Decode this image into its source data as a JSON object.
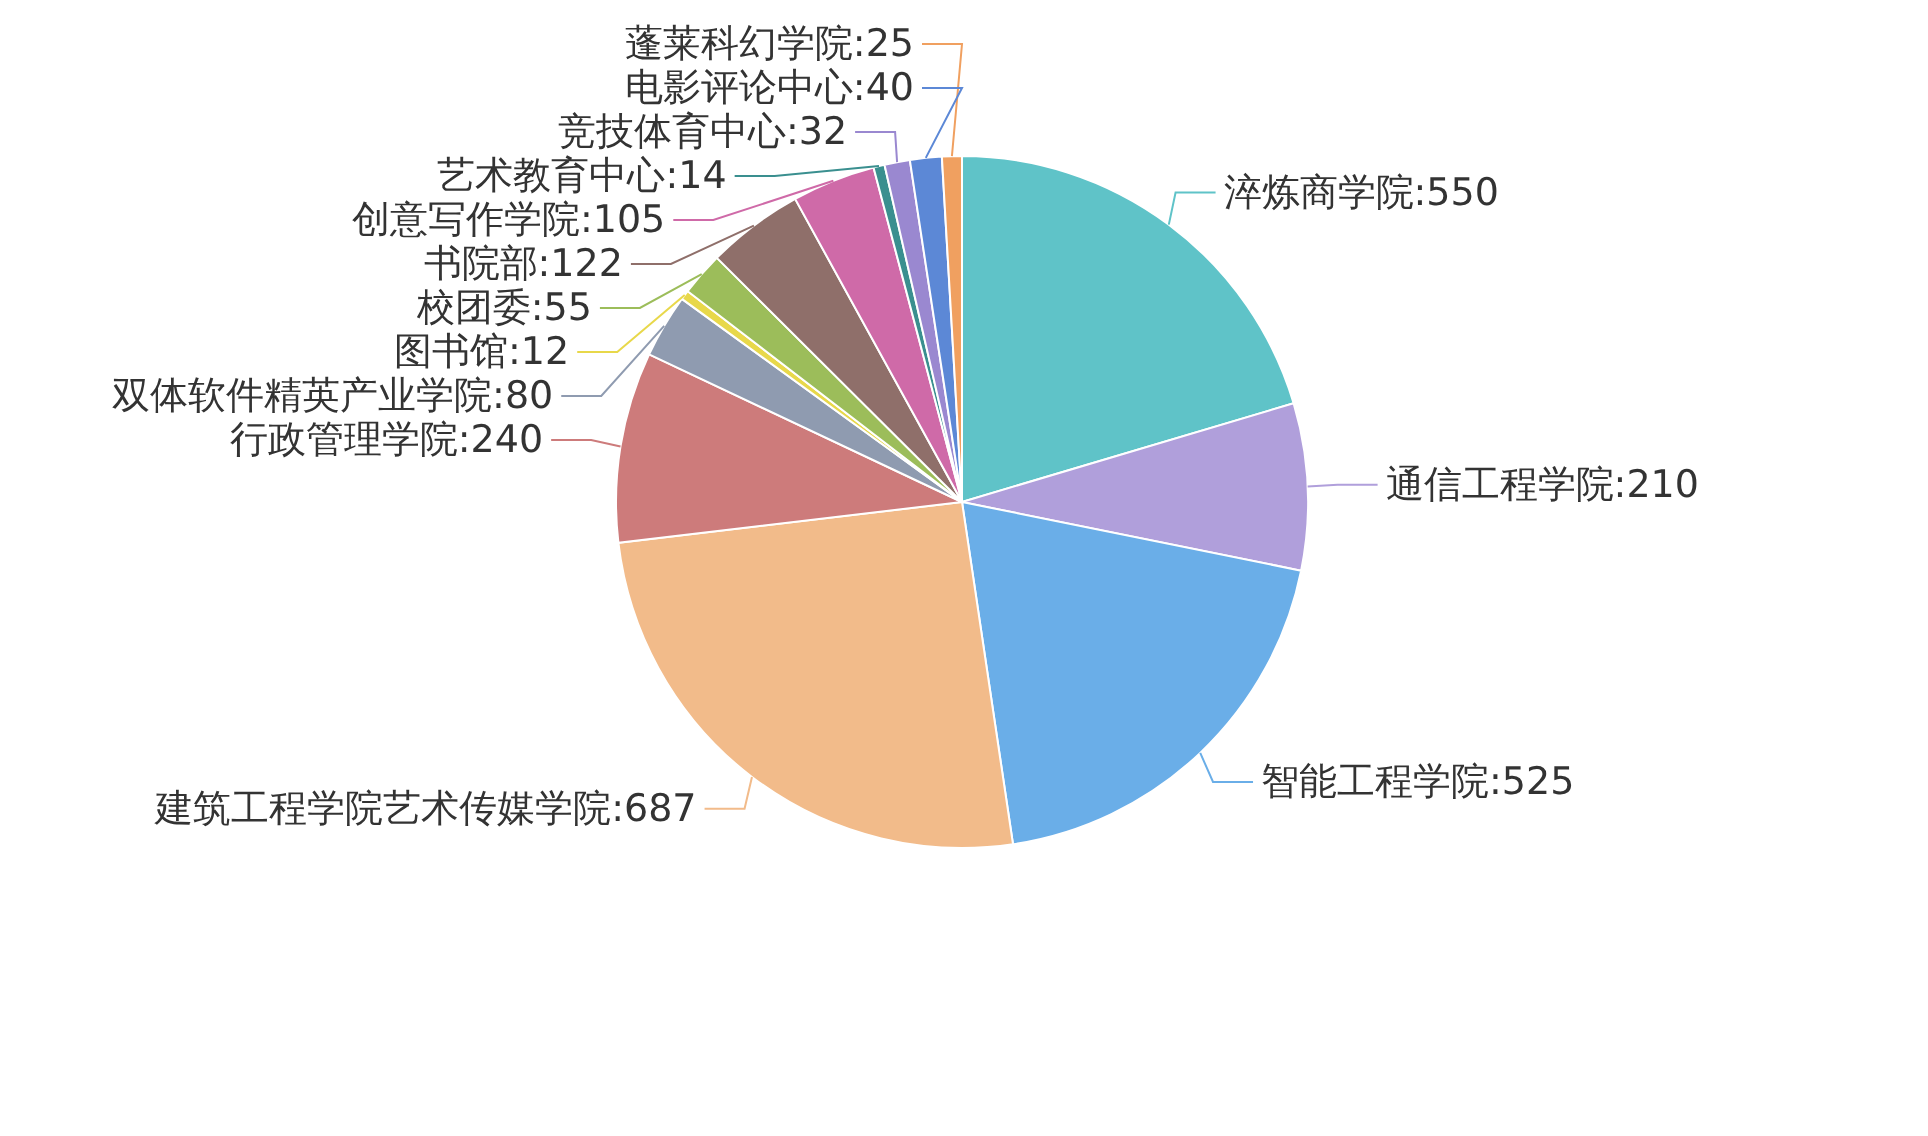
{
  "chart_data": {
    "type": "pie",
    "categories": [
      "淬炼商学院",
      "通信工程学院",
      "智能工程学院",
      "建筑工程学院艺术传媒学院",
      "行政管理学院",
      "双体软件精英产业学院",
      "图书馆",
      "校团委",
      "书院部",
      "创意写作学院",
      "艺术教育中心",
      "竞技体育中心",
      "电影评论中心",
      "蓬莱科幻学院"
    ],
    "values": [
      550,
      210,
      525,
      687,
      240,
      80,
      12,
      55,
      122,
      105,
      14,
      32,
      40,
      25
    ],
    "value_labels": [
      ":550",
      ":210",
      ":525",
      ":687",
      ":240",
      ":80",
      ":12",
      ":55",
      ":122",
      ":105",
      ":14",
      ":32",
      ":40",
      ":25"
    ],
    "colors": [
      "#5fc3c8",
      "#b09fdb",
      "#6aaee8",
      "#f2bb8a",
      "#cd7b7b",
      "#8f9bb0",
      "#e8d84a",
      "#9cbd5a",
      "#8f6f6a",
      "#cf6aa8",
      "#3a8f8f",
      "#9a88d0",
      "#5c88d6",
      "#f0a060"
    ]
  }
}
